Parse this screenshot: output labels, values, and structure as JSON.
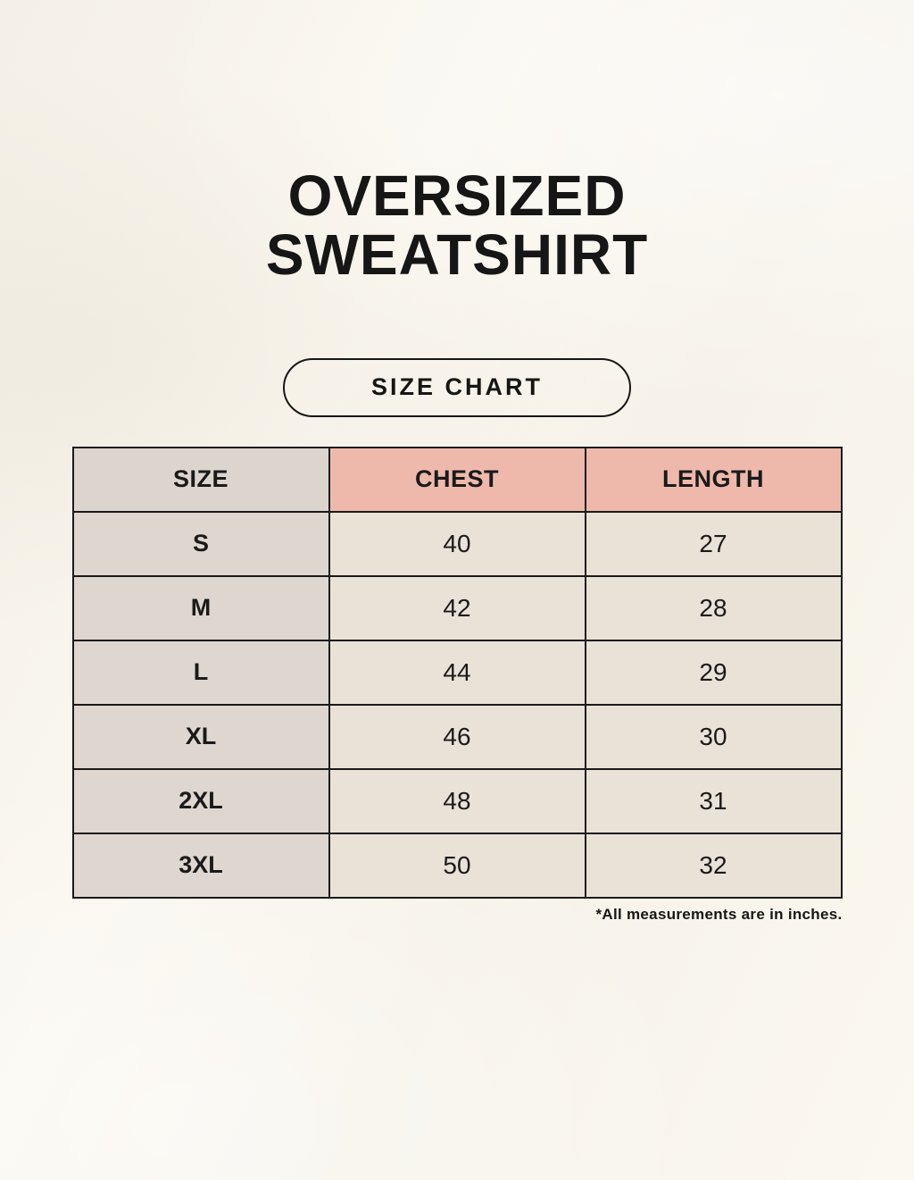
{
  "page": {
    "title_line1": "OVERSIZED",
    "title_line2": "SWEATSHIRT",
    "badge_label": "SIZE CHART",
    "footnote": "*All measurements are in inches."
  },
  "colors": {
    "background": "#faf7ef",
    "border": "#1a1a1a",
    "text": "#1a1a1a",
    "header_size_bg": "#dbd5ce",
    "header_measure_bg": "#eeb9ab",
    "row_label_bg": "#ddd7d0",
    "row_value_bg": "#e9e2d6"
  },
  "table": {
    "columns": [
      "SIZE",
      "CHEST",
      "LENGTH"
    ],
    "rows": [
      {
        "size": "S",
        "chest": "40",
        "length": "27"
      },
      {
        "size": "M",
        "chest": "42",
        "length": "28"
      },
      {
        "size": "L",
        "chest": "44",
        "length": "29"
      },
      {
        "size": "XL",
        "chest": "46",
        "length": "30"
      },
      {
        "size": "2XL",
        "chest": "48",
        "length": "31"
      },
      {
        "size": "3XL",
        "chest": "50",
        "length": "32"
      }
    ]
  },
  "chart_data": {
    "type": "table",
    "title": "OVERSIZED SWEATSHIRT SIZE CHART",
    "columns": [
      "SIZE",
      "CHEST",
      "LENGTH"
    ],
    "rows": [
      [
        "S",
        40,
        27
      ],
      [
        "M",
        42,
        28
      ],
      [
        "L",
        44,
        29
      ],
      [
        "XL",
        46,
        30
      ],
      [
        "2XL",
        48,
        31
      ],
      [
        "3XL",
        50,
        32
      ]
    ],
    "units": "inches",
    "note": "*All measurements are in inches."
  }
}
